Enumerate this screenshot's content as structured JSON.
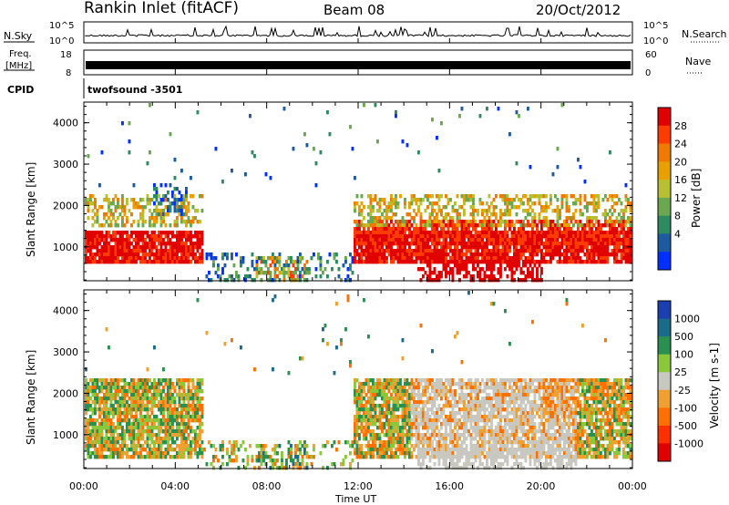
{
  "header": {
    "station": "Rankin Inlet (fitACF)",
    "beam": "Beam 08",
    "date": "20/Oct/2012"
  },
  "nsky_panel": {
    "left_label": "N.Sky",
    "left_ticks": [
      "10^5",
      "10^0"
    ],
    "right_label": "N.Search",
    "right_ticks": [
      "10^5",
      "10^0"
    ]
  },
  "freq_panel": {
    "left_label_top": "Freq.",
    "left_label_bottom": "[MHz]",
    "left_ticks": [
      "18",
      "8"
    ],
    "right_label": "Nave",
    "right_ticks": [
      "60",
      "0"
    ]
  },
  "cpid": {
    "label": "CPID",
    "value": "twofsound -3501"
  },
  "x_axis": {
    "title": "Time UT",
    "ticks": [
      "00:00",
      "04:00",
      "08:00",
      "12:00",
      "16:00",
      "20:00",
      "00:00"
    ]
  },
  "range_axis": {
    "title": "Slant Range [km]",
    "ticks": [
      "1000",
      "2000",
      "3000",
      "4000"
    ]
  },
  "power_scale": {
    "title": "Power [dB]",
    "labels": [
      "28",
      "24",
      "20",
      "16",
      "12",
      "8",
      "4"
    ],
    "colors": [
      "#e00000",
      "#ff3c00",
      "#f07a00",
      "#e8a000",
      "#b8c030",
      "#6aa850",
      "#2e8a60",
      "#1e5aa0",
      "#0030ff"
    ]
  },
  "velocity_scale": {
    "title": "Velocity [m s-1]",
    "labels": [
      "1000",
      "500",
      "100",
      "25",
      "-25",
      "-100",
      "-500",
      "-1000"
    ],
    "colors": [
      "#1a3fb0",
      "#1a6a8a",
      "#2a9050",
      "#8ac83a",
      "#c8c8c0",
      "#f0a030",
      "#ff7000",
      "#ff3000",
      "#e00000"
    ]
  },
  "chart_data": [
    {
      "type": "line",
      "panel": "N.Sky / N.Search",
      "x_range_hours": [
        0,
        24
      ],
      "note_values": "noise level trace, log scale 10^0 to 10^5"
    },
    {
      "type": "line",
      "panel": "Freq. / Nave",
      "x_range_hours": [
        0,
        24
      ],
      "freq_range_mhz": [
        8,
        18
      ],
      "nave_range": [
        0,
        60
      ]
    },
    {
      "type": "heatmap",
      "panel": "Power",
      "x_range_hours": [
        0,
        24
      ],
      "y_range_km": [
        180,
        4500
      ],
      "colorbar_range_db": [
        0,
        30
      ]
    },
    {
      "type": "heatmap",
      "panel": "Velocity",
      "x_range_hours": [
        0,
        24
      ],
      "y_range_km": [
        180,
        4500
      ],
      "colorbar_range_ms": [
        -1000,
        1000
      ]
    }
  ]
}
